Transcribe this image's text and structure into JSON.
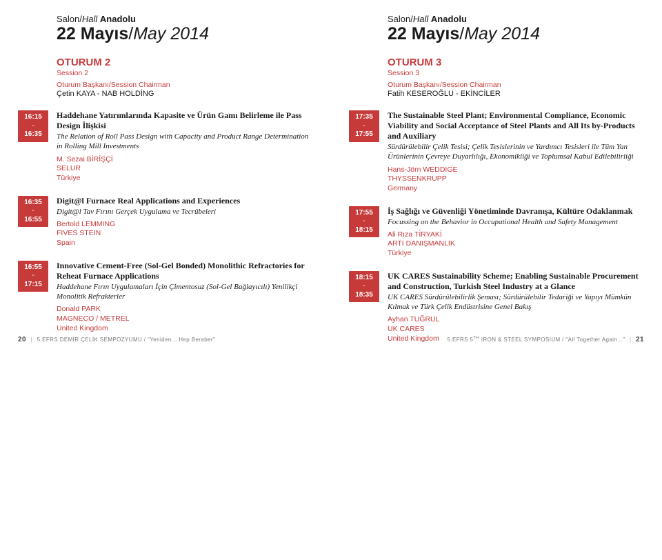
{
  "colors": {
    "accent": "#c63a3a",
    "text": "#1a1a1a",
    "bg": "#ffffff",
    "muted": "#777777"
  },
  "left": {
    "hall_label": "Salon/",
    "hall_label_en": "Hall",
    "hall_name": "Anadolu",
    "date_tr": "22 Mayıs",
    "date_en": "May 2014",
    "session_tr": "OTURUM 2",
    "session_en": "Session 2",
    "chair_label": "Oturum Başkanı/Session Chairman",
    "chair_name": "Çetin KAYA - NAB HOLDİNG",
    "talks": [
      {
        "start": "16:15",
        "end": "16:35",
        "title_tr": "Haddehane Yatırımlarında Kapasite ve Ürün Gamı Belirleme ile Pass Design İlişkisi",
        "title_en": "The Relation of Roll Pass Design with Capacity and Product Range Determination in Rolling Mill Investments",
        "speaker_name": "M. Sezai BİRİŞÇİ",
        "speaker_org": "SELUR",
        "speaker_country": "Türkiye"
      },
      {
        "start": "16:35",
        "end": "16:55",
        "title_tr": "Digit@l Furnace Real Applications and Experiences",
        "title_en": "Digit@l Tav Fırını Gerçek Uygulama ve Tecrübeleri",
        "speaker_name": "Bertold LEMMING",
        "speaker_org": "FIVES STEIN",
        "speaker_country": "Spain"
      },
      {
        "start": "16:55",
        "end": "17:15",
        "title_tr": "Innovative Cement-Free (Sol-Gel Bonded) Monolithic Refractories for Reheat Furnace Applications",
        "title_en": "Haddehane Fırın Uygulamaları İçin Çimentosuz (Sol-Gel Bağlayıcılı) Yenilikçi Monolitik Refrakterler",
        "speaker_name": "Donald PARK",
        "speaker_org": "MAGNECO / METREL",
        "speaker_country": "United Kingdom"
      }
    ],
    "footer_pageno": "20",
    "footer_text": "5.EFRS DEMİR ÇELİK SEMPOZYUMU / \"Yeniden... Hep Beraber\""
  },
  "right": {
    "hall_label": "Salon/",
    "hall_label_en": "Hall",
    "hall_name": "Anadolu",
    "date_tr": "22 Mayıs",
    "date_en": "May 2014",
    "session_tr": "OTURUM 3",
    "session_en": "Session 3",
    "chair_label": "Oturum Başkanı/Session Chairman",
    "chair_name": "Fatih KESEROĞLU - EKİNCİLER",
    "talks": [
      {
        "start": "17:35",
        "end": "17:55",
        "title_tr": "The Sustainable Steel Plant; Environmental Compliance, Economic Viability and Social Acceptance of Steel Plants and All Its by-Products and Auxiliary",
        "title_en": "Sürdürülebilir Çelik Tesisi; Çelik Tesislerinin ve Yardımcı Tesisleri ile Tüm Yan Ürünlerinin Çevreye Duyarlılığı, Ekonomikliği ve Toplumsal Kabul Edilebilirliği",
        "speaker_name": "Hans-Jörn WEDDIGE",
        "speaker_org": "THYSSENKRUPP",
        "speaker_country": "Germany"
      },
      {
        "start": "17:55",
        "end": "18:15",
        "title_tr": "İş Sağlığı ve Güvenliği Yönetiminde Davranışa, Kültüre Odaklanmak",
        "title_en": "Focussing on the Behavior in Occupational Health and Safety Management",
        "speaker_name": "Ali Rıza TİRYAKİ",
        "speaker_org": "ARTI DANIŞMANLIK",
        "speaker_country": "Türkiye"
      },
      {
        "start": "18:15",
        "end": "18:35",
        "title_tr": "UK CARES Sustainability Scheme; Enabling Sustainable Procurement and Construction, Turkish Steel Industry at a Glance",
        "title_en": "UK CARES Sürdürülebilirlik Şeması; Sürdürülebilir Tedariği ve Yapıyı Mümkün Kılmak ve Türk Çelik Endüstrisine Genel Bakış",
        "speaker_name": "Ayhan TUĞRUL",
        "speaker_org": "UK CARES",
        "speaker_country": "United Kingdom"
      }
    ],
    "footer_text_a": "5.EFRS 5",
    "footer_text_sup": "TH",
    "footer_text_b": " IRON & STEEL SYMPOSIUM / \"All Together Again...\"",
    "footer_pageno": "21"
  }
}
